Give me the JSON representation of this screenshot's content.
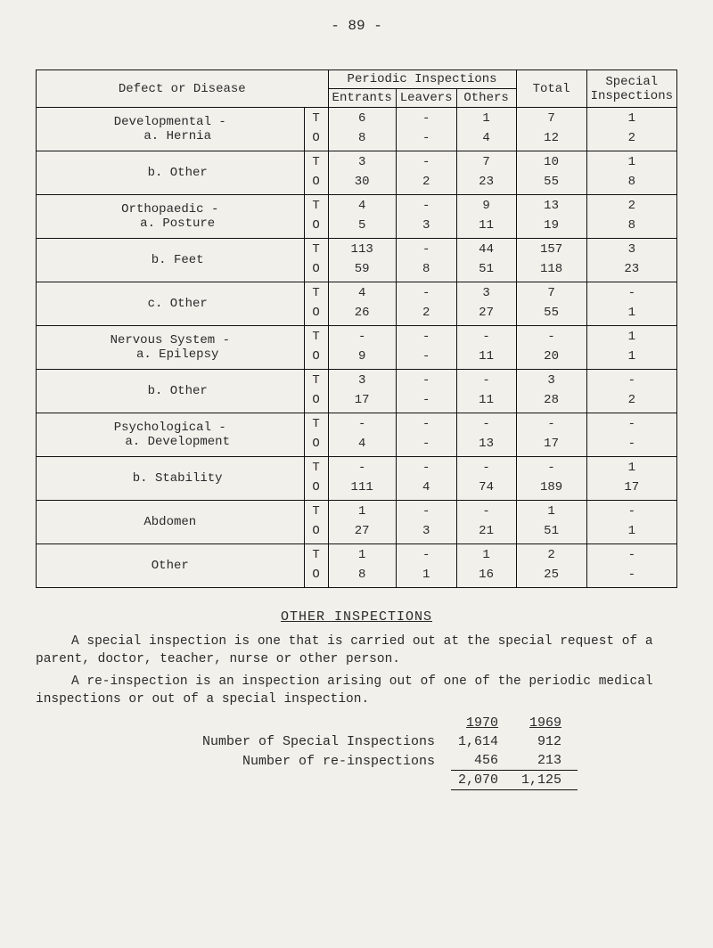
{
  "pageNumber": "- 89 -",
  "table": {
    "headers": {
      "defect": "Defect or Disease",
      "periodic": "Periodic Inspections",
      "entrants": "Entrants",
      "leavers": "Leavers",
      "others": "Others",
      "total": "Total",
      "special": "Special Inspections"
    },
    "rows": [
      {
        "label": "Developmental -\n  a. Hernia",
        "t": {
          "ent": "6",
          "lea": "-",
          "oth": "1",
          "tot": "7",
          "spec": "1"
        },
        "o": {
          "ent": "8",
          "lea": "-",
          "oth": "4",
          "tot": "12",
          "spec": "2"
        }
      },
      {
        "label": "  b. Other",
        "t": {
          "ent": "3",
          "lea": "-",
          "oth": "7",
          "tot": "10",
          "spec": "1"
        },
        "o": {
          "ent": "30",
          "lea": "2",
          "oth": "23",
          "tot": "55",
          "spec": "8"
        }
      },
      {
        "label": "Orthopaedic -\n  a. Posture",
        "t": {
          "ent": "4",
          "lea": "-",
          "oth": "9",
          "tot": "13",
          "spec": "2"
        },
        "o": {
          "ent": "5",
          "lea": "3",
          "oth": "11",
          "tot": "19",
          "spec": "8"
        }
      },
      {
        "label": "  b. Feet",
        "t": {
          "ent": "113",
          "lea": "-",
          "oth": "44",
          "tot": "157",
          "spec": "3"
        },
        "o": {
          "ent": "59",
          "lea": "8",
          "oth": "51",
          "tot": "118",
          "spec": "23"
        }
      },
      {
        "label": "  c. Other",
        "t": {
          "ent": "4",
          "lea": "-",
          "oth": "3",
          "tot": "7",
          "spec": "-"
        },
        "o": {
          "ent": "26",
          "lea": "2",
          "oth": "27",
          "tot": "55",
          "spec": "1"
        }
      },
      {
        "label": "Nervous System -\n  a. Epilepsy",
        "t": {
          "ent": "-",
          "lea": "-",
          "oth": "-",
          "tot": "-",
          "spec": "1"
        },
        "o": {
          "ent": "9",
          "lea": "-",
          "oth": "11",
          "tot": "20",
          "spec": "1"
        }
      },
      {
        "label": "  b. Other",
        "t": {
          "ent": "3",
          "lea": "-",
          "oth": "-",
          "tot": "3",
          "spec": "-"
        },
        "o": {
          "ent": "17",
          "lea": "-",
          "oth": "11",
          "tot": "28",
          "spec": "2"
        }
      },
      {
        "label": "Psychological -\n  a. Development",
        "t": {
          "ent": "-",
          "lea": "-",
          "oth": "-",
          "tot": "-",
          "spec": "-"
        },
        "o": {
          "ent": "4",
          "lea": "-",
          "oth": "13",
          "tot": "17",
          "spec": "-"
        }
      },
      {
        "label": "  b. Stability",
        "t": {
          "ent": "-",
          "lea": "-",
          "oth": "-",
          "tot": "-",
          "spec": "1"
        },
        "o": {
          "ent": "111",
          "lea": "4",
          "oth": "74",
          "tot": "189",
          "spec": "17"
        }
      },
      {
        "label": "Abdomen",
        "t": {
          "ent": "1",
          "lea": "-",
          "oth": "-",
          "tot": "1",
          "spec": "-"
        },
        "o": {
          "ent": "27",
          "lea": "3",
          "oth": "21",
          "tot": "51",
          "spec": "1"
        }
      },
      {
        "label": "Other",
        "t": {
          "ent": "1",
          "lea": "-",
          "oth": "1",
          "tot": "2",
          "spec": "-"
        },
        "o": {
          "ent": "8",
          "lea": "1",
          "oth": "16",
          "tot": "25",
          "spec": "-"
        }
      }
    ],
    "subrowLabels": {
      "t": "T",
      "o": "O"
    }
  },
  "section": {
    "title": "OTHER INSPECTIONS",
    "para1": "A special inspection is one that is carried out at the special request of a parent, doctor, teacher, nurse or other person.",
    "para2": "A re-inspection is an inspection arising out of one of the periodic medical inspections or out of a special inspection."
  },
  "summary": {
    "yearHeaders": [
      "1970",
      "1969"
    ],
    "rows": [
      {
        "label": "Number of Special Inspections",
        "y1": "1,614",
        "y2": "912"
      },
      {
        "label": "Number of re-inspections",
        "y1": "456",
        "y2": "213"
      }
    ],
    "totals": {
      "y1": "2,070",
      "y2": "1,125"
    }
  }
}
